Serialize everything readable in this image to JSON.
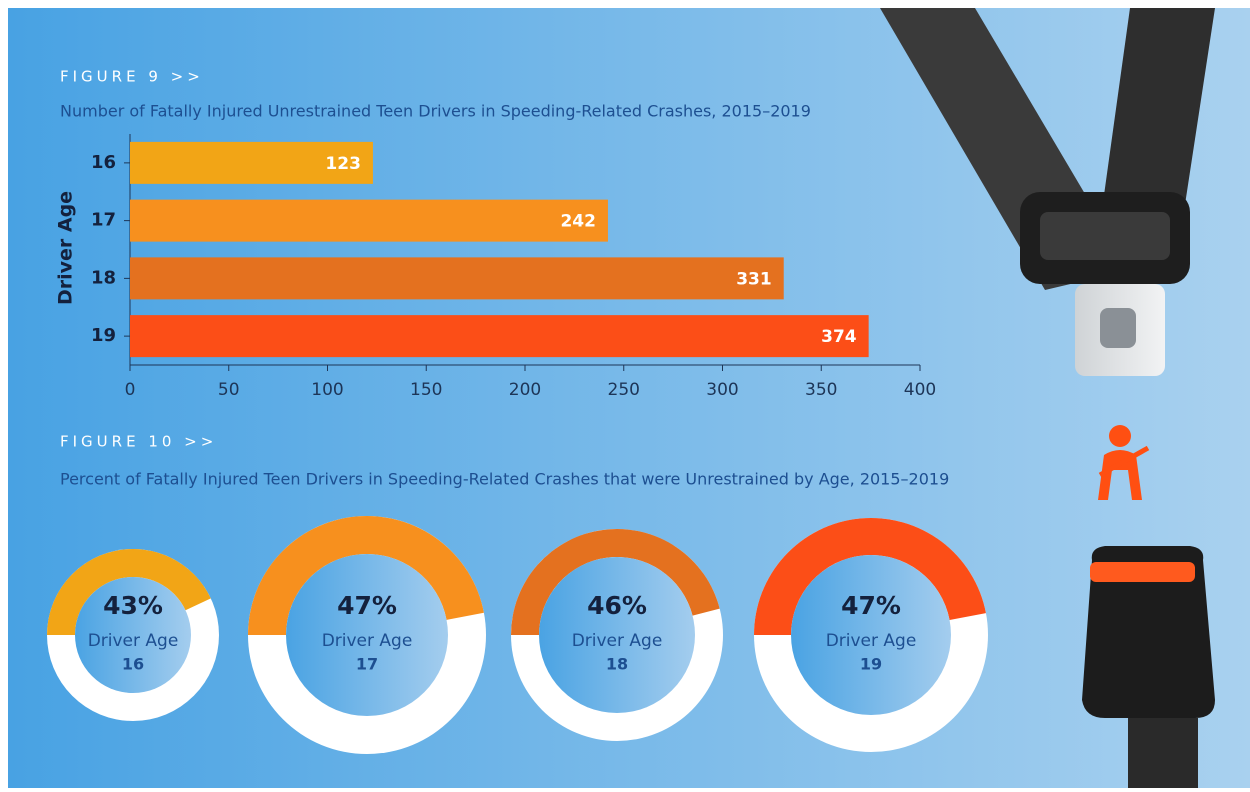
{
  "chart_data": [
    {
      "type": "bar",
      "orientation": "horizontal",
      "label": "FIGURE 9 >>",
      "title": "Number of Fatally Injured Unrestrained Teen Drivers in Speeding-Related Crashes, 2015–2019",
      "y_label": "Driver Age",
      "categories": [
        "16",
        "17",
        "18",
        "19"
      ],
      "values": [
        123,
        242,
        331,
        374
      ],
      "colors": [
        "#f2a516",
        "#f7901e",
        "#e4711f",
        "#fc4e17"
      ],
      "xlim": [
        0,
        400
      ],
      "xticks": [
        0,
        50,
        100,
        150,
        200,
        250,
        300,
        350,
        400
      ]
    },
    {
      "type": "donut",
      "label": "FIGURE 10 >>",
      "title": "Percent of Fatally Injured Teen Drivers in Speeding-Related Crashes that were Unrestrained by Age, 2015–2019",
      "center_label": "Driver Age",
      "categories": [
        "16",
        "17",
        "18",
        "19"
      ],
      "values": [
        43,
        47,
        46,
        47
      ],
      "value_labels": [
        "43%",
        "47%",
        "46%",
        "47%"
      ],
      "colors": [
        "#f2a516",
        "#f7901e",
        "#e4711f",
        "#fc4e17"
      ]
    }
  ]
}
